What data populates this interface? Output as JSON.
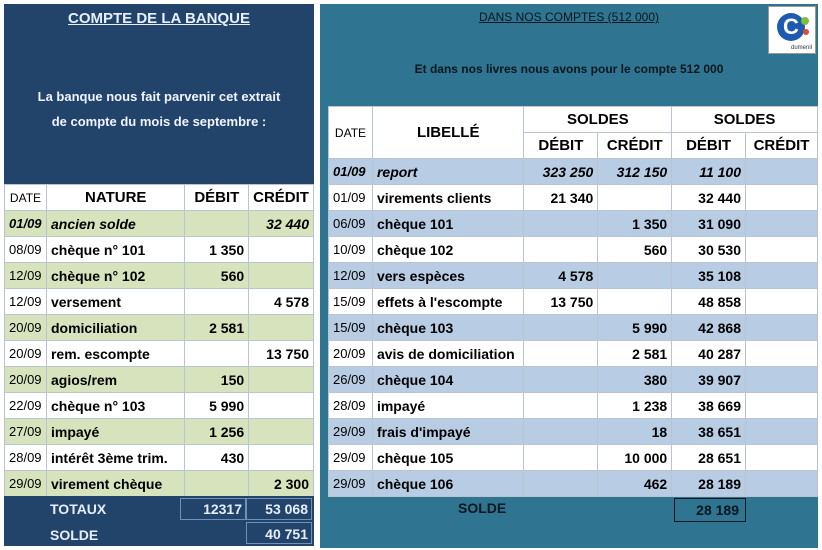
{
  "left": {
    "title": "COMPTE DE LA BANQUE",
    "desc_line1": "La banque nous fait parvenir cet extrait",
    "desc_line2": "de compte du mois de septembre :",
    "headers": {
      "date": "DATE",
      "nature": "NATURE",
      "debit": "DÉBIT",
      "credit": "CRÉDIT"
    },
    "rows": [
      {
        "date": "01/09",
        "nature": "ancien solde",
        "debit": "",
        "credit": "32 440"
      },
      {
        "date": "08/09",
        "nature": "chèque n° 101",
        "debit": "1 350",
        "credit": ""
      },
      {
        "date": "12/09",
        "nature": "chèque n° 102",
        "debit": "560",
        "credit": ""
      },
      {
        "date": "12/09",
        "nature": "versement",
        "debit": "",
        "credit": "4 578"
      },
      {
        "date": "20/09",
        "nature": "domiciliation",
        "debit": "2 581",
        "credit": ""
      },
      {
        "date": "20/09",
        "nature": "rem. escompte",
        "debit": "",
        "credit": "13 750"
      },
      {
        "date": "20/09",
        "nature": "agios/rem",
        "debit": "150",
        "credit": ""
      },
      {
        "date": "22/09",
        "nature": "chèque n° 103",
        "debit": "5 990",
        "credit": ""
      },
      {
        "date": "27/09",
        "nature": "impayé",
        "debit": "1 256",
        "credit": ""
      },
      {
        "date": "28/09",
        "nature": "intérêt 3ème trim.",
        "debit": "430",
        "credit": ""
      },
      {
        "date": "29/09",
        "nature": "virement chèque",
        "debit": "",
        "credit": "2 300"
      }
    ],
    "totals_label": "TOTAUX",
    "totals_debit": "12317",
    "totals_credit": "53 068",
    "solde_label": "SOLDE",
    "solde_value": "40 751"
  },
  "right": {
    "title": "DANS NOS COMPTES (512 000)",
    "desc": "Et dans nos livres nous avons pour le compte 512 000",
    "logo_letter": "C",
    "logo_brand": "dumenil",
    "headers": {
      "date": "DATE",
      "libelle": "LIBELLÉ",
      "soldes1": "SOLDES",
      "soldes2": "SOLDES",
      "debit1": "DÉBIT",
      "credit1": "CRÉDIT",
      "debit2": "DÉBIT",
      "credit2": "CRÉDIT"
    },
    "rows": [
      {
        "date": "01/09",
        "libelle": "report",
        "debit": "323 250",
        "credit": "312 150",
        "sdebit": "11 100",
        "scredit": ""
      },
      {
        "date": "01/09",
        "libelle": "virements clients",
        "debit": "21 340",
        "credit": "",
        "sdebit": "32 440",
        "scredit": ""
      },
      {
        "date": "06/09",
        "libelle": "chèque 101",
        "debit": "",
        "credit": "1 350",
        "sdebit": "31 090",
        "scredit": ""
      },
      {
        "date": "10/09",
        "libelle": "chèque 102",
        "debit": "",
        "credit": "560",
        "sdebit": "30 530",
        "scredit": ""
      },
      {
        "date": "12/09",
        "libelle": "vers espèces",
        "debit": "4 578",
        "credit": "",
        "sdebit": "35 108",
        "scredit": ""
      },
      {
        "date": "15/09",
        "libelle": "effets à l'escompte",
        "debit": "13 750",
        "credit": "",
        "sdebit": "48 858",
        "scredit": ""
      },
      {
        "date": "15/09",
        "libelle": "chèque 103",
        "debit": "",
        "credit": "5 990",
        "sdebit": "42 868",
        "scredit": ""
      },
      {
        "date": "20/09",
        "libelle": "avis de domiciliation",
        "debit": "",
        "credit": "2 581",
        "sdebit": "40 287",
        "scredit": ""
      },
      {
        "date": "26/09",
        "libelle": "chèque 104",
        "debit": "",
        "credit": "380",
        "sdebit": "39 907",
        "scredit": ""
      },
      {
        "date": "28/09",
        "libelle": "impayé",
        "debit": "",
        "credit": "1 238",
        "sdebit": "38 669",
        "scredit": ""
      },
      {
        "date": "29/09",
        "libelle": "frais d'impayé",
        "debit": "",
        "credit": "18",
        "sdebit": "38 651",
        "scredit": ""
      },
      {
        "date": "29/09",
        "libelle": "chèque 105",
        "debit": "",
        "credit": "10 000",
        "sdebit": "28 651",
        "scredit": ""
      },
      {
        "date": "29/09",
        "libelle": "chèque 106",
        "debit": "",
        "credit": "462",
        "sdebit": "28 189",
        "scredit": ""
      }
    ],
    "solde_label": "SOLDE",
    "solde_value": "28 189"
  }
}
